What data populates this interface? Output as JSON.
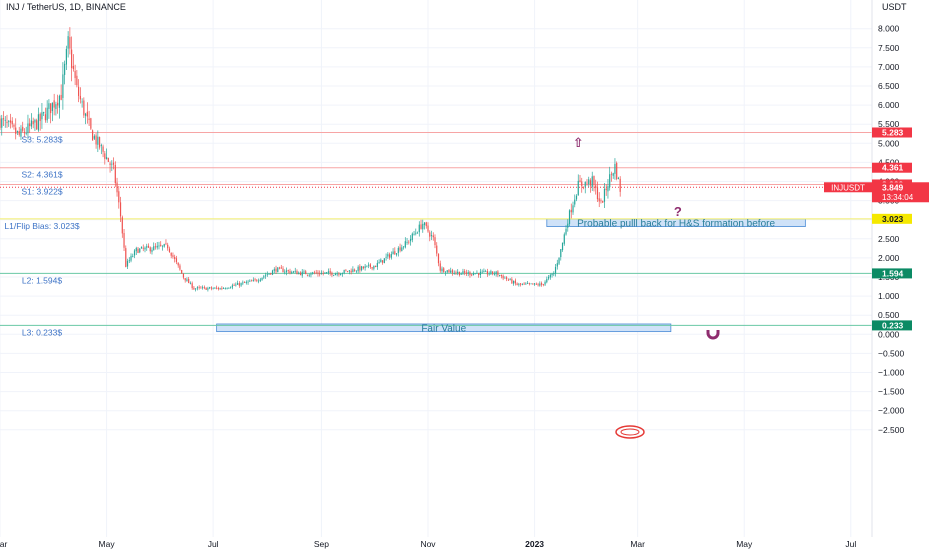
{
  "header": {
    "title": "INJ / TetherUS, 1D, BINANCE"
  },
  "axis": {
    "currency": "USDT"
  },
  "chart_data": {
    "type": "candlestick",
    "title": "INJ / TetherUS, 1D, BINANCE",
    "ylabel": "USDT",
    "ylim": [
      -2.7,
      8.5
    ],
    "y_ticks": [
      "8.000",
      "7.500",
      "7.000",
      "6.500",
      "6.000",
      "5.500",
      "5.000",
      "4.500",
      "4.000",
      "3.500",
      "3.000",
      "2.500",
      "2.000",
      "1.500",
      "1.000",
      "0.500",
      "0.000",
      "−0.500",
      "−1.000",
      "−1.500",
      "−2.000",
      "−2.500"
    ],
    "y_tick_values": [
      8,
      7.5,
      7,
      6.5,
      6,
      5.5,
      5,
      4.5,
      4,
      3.5,
      3,
      2.5,
      2,
      1.5,
      1,
      0.5,
      0,
      -0.5,
      -1,
      -1.5,
      -2,
      -2.5
    ],
    "x_ticks": [
      {
        "label": "Mar",
        "date": "2022-03-01"
      },
      {
        "label": "May",
        "date": "2022-05-01"
      },
      {
        "label": "Jul",
        "date": "2022-07-01"
      },
      {
        "label": "Sep",
        "date": "2022-09-01"
      },
      {
        "label": "Nov",
        "date": "2022-11-01"
      },
      {
        "label": "2023",
        "date": "2023-01-01"
      },
      {
        "label": "Mar",
        "date": "2023-03-01"
      },
      {
        "label": "May",
        "date": "2023-05-01"
      },
      {
        "label": "Jul",
        "date": "2023-07-01"
      }
    ],
    "price_path": [
      {
        "date": "2022-03-01",
        "price": 5.6
      },
      {
        "date": "2022-03-12",
        "price": 5.2
      },
      {
        "date": "2022-03-24",
        "price": 5.6
      },
      {
        "date": "2022-04-05",
        "price": 6.3
      },
      {
        "date": "2022-04-09",
        "price": 7.6
      },
      {
        "date": "2022-04-14",
        "price": 6.4
      },
      {
        "date": "2022-04-22",
        "price": 5.3
      },
      {
        "date": "2022-04-30",
        "price": 4.7
      },
      {
        "date": "2022-05-05",
        "price": 4.3
      },
      {
        "date": "2022-05-09",
        "price": 3.1
      },
      {
        "date": "2022-05-12",
        "price": 1.8
      },
      {
        "date": "2022-05-18",
        "price": 2.2
      },
      {
        "date": "2022-06-05",
        "price": 2.3
      },
      {
        "date": "2022-06-14",
        "price": 1.5
      },
      {
        "date": "2022-06-20",
        "price": 1.2
      },
      {
        "date": "2022-07-05",
        "price": 1.2
      },
      {
        "date": "2022-07-25",
        "price": 1.4
      },
      {
        "date": "2022-08-06",
        "price": 1.7
      },
      {
        "date": "2022-08-20",
        "price": 1.6
      },
      {
        "date": "2022-09-10",
        "price": 1.6
      },
      {
        "date": "2022-10-02",
        "price": 1.8
      },
      {
        "date": "2022-10-20",
        "price": 2.4
      },
      {
        "date": "2022-10-29",
        "price": 2.9
      },
      {
        "date": "2022-11-04",
        "price": 2.5
      },
      {
        "date": "2022-11-08",
        "price": 1.7
      },
      {
        "date": "2022-11-20",
        "price": 1.6
      },
      {
        "date": "2022-12-10",
        "price": 1.6
      },
      {
        "date": "2022-12-22",
        "price": 1.3
      },
      {
        "date": "2023-01-05",
        "price": 1.3
      },
      {
        "date": "2023-01-12",
        "price": 1.6
      },
      {
        "date": "2023-01-16",
        "price": 2.2
      },
      {
        "date": "2023-01-20",
        "price": 3.0
      },
      {
        "date": "2023-01-26",
        "price": 3.9
      },
      {
        "date": "2023-02-03",
        "price": 4.0
      },
      {
        "date": "2023-02-08",
        "price": 3.4
      },
      {
        "date": "2023-02-13",
        "price": 4.1
      },
      {
        "date": "2023-02-16",
        "price": 4.4
      },
      {
        "date": "2023-02-19",
        "price": 3.8
      }
    ],
    "horizontal_levels": [
      {
        "label": "S3: 5.283$",
        "price": 5.283,
        "color": "#f7a5a5",
        "tag": "5.283",
        "tag_color": "#f23645"
      },
      {
        "label": "S2: 4.361$",
        "price": 4.361,
        "color": "#f7a5a5",
        "tag": "4.361",
        "tag_color": "#f23645"
      },
      {
        "label": "S1: 3.922$",
        "price": 3.922,
        "color": "#f7a5a5",
        "tag": "3.922",
        "tag_color": "#f23645"
      },
      {
        "label": "L1/Flip Bias: 3.023$",
        "price": 3.023,
        "color": "#f2ee6a",
        "tag": "3.023",
        "tag_color": "#f5e800"
      },
      {
        "label": "L2: 1.594$",
        "price": 1.594,
        "color": "#69c8a5",
        "tag": "1.594",
        "tag_color": "#0b8a64"
      },
      {
        "label": "L3: 0.233$",
        "price": 0.233,
        "color": "#69c8a5",
        "tag": "0.233",
        "tag_color": "#0b8a64"
      }
    ],
    "current_price": {
      "symbol": "INJUSDT",
      "price": 3.849,
      "tag": "3.849",
      "countdown": "13:34:04",
      "color": "#f23645"
    },
    "annotations": [
      {
        "text": "Probable pulll back for H&S formation before",
        "start": "2023-01-08",
        "end": "2023-06-05",
        "top": 3.02,
        "bottom": 2.82
      },
      {
        "text": "Fair Value",
        "start": "2022-07-03",
        "end": "2023-03-20",
        "top": 0.27,
        "bottom": 0.07
      }
    ],
    "marks": [
      {
        "glyph": "?",
        "date": "2023-03-24",
        "price": 3.1
      },
      {
        "glyph": "⇧",
        "date": "2023-01-26",
        "price": 4.9
      }
    ],
    "colors": {
      "up": "#26a69a",
      "down": "#ef5350",
      "grid": "#f0f3fa",
      "annotation_fill": "#cfe2f8",
      "annotation_border": "#4a8bd6",
      "level_text": "#3d73c6"
    }
  }
}
